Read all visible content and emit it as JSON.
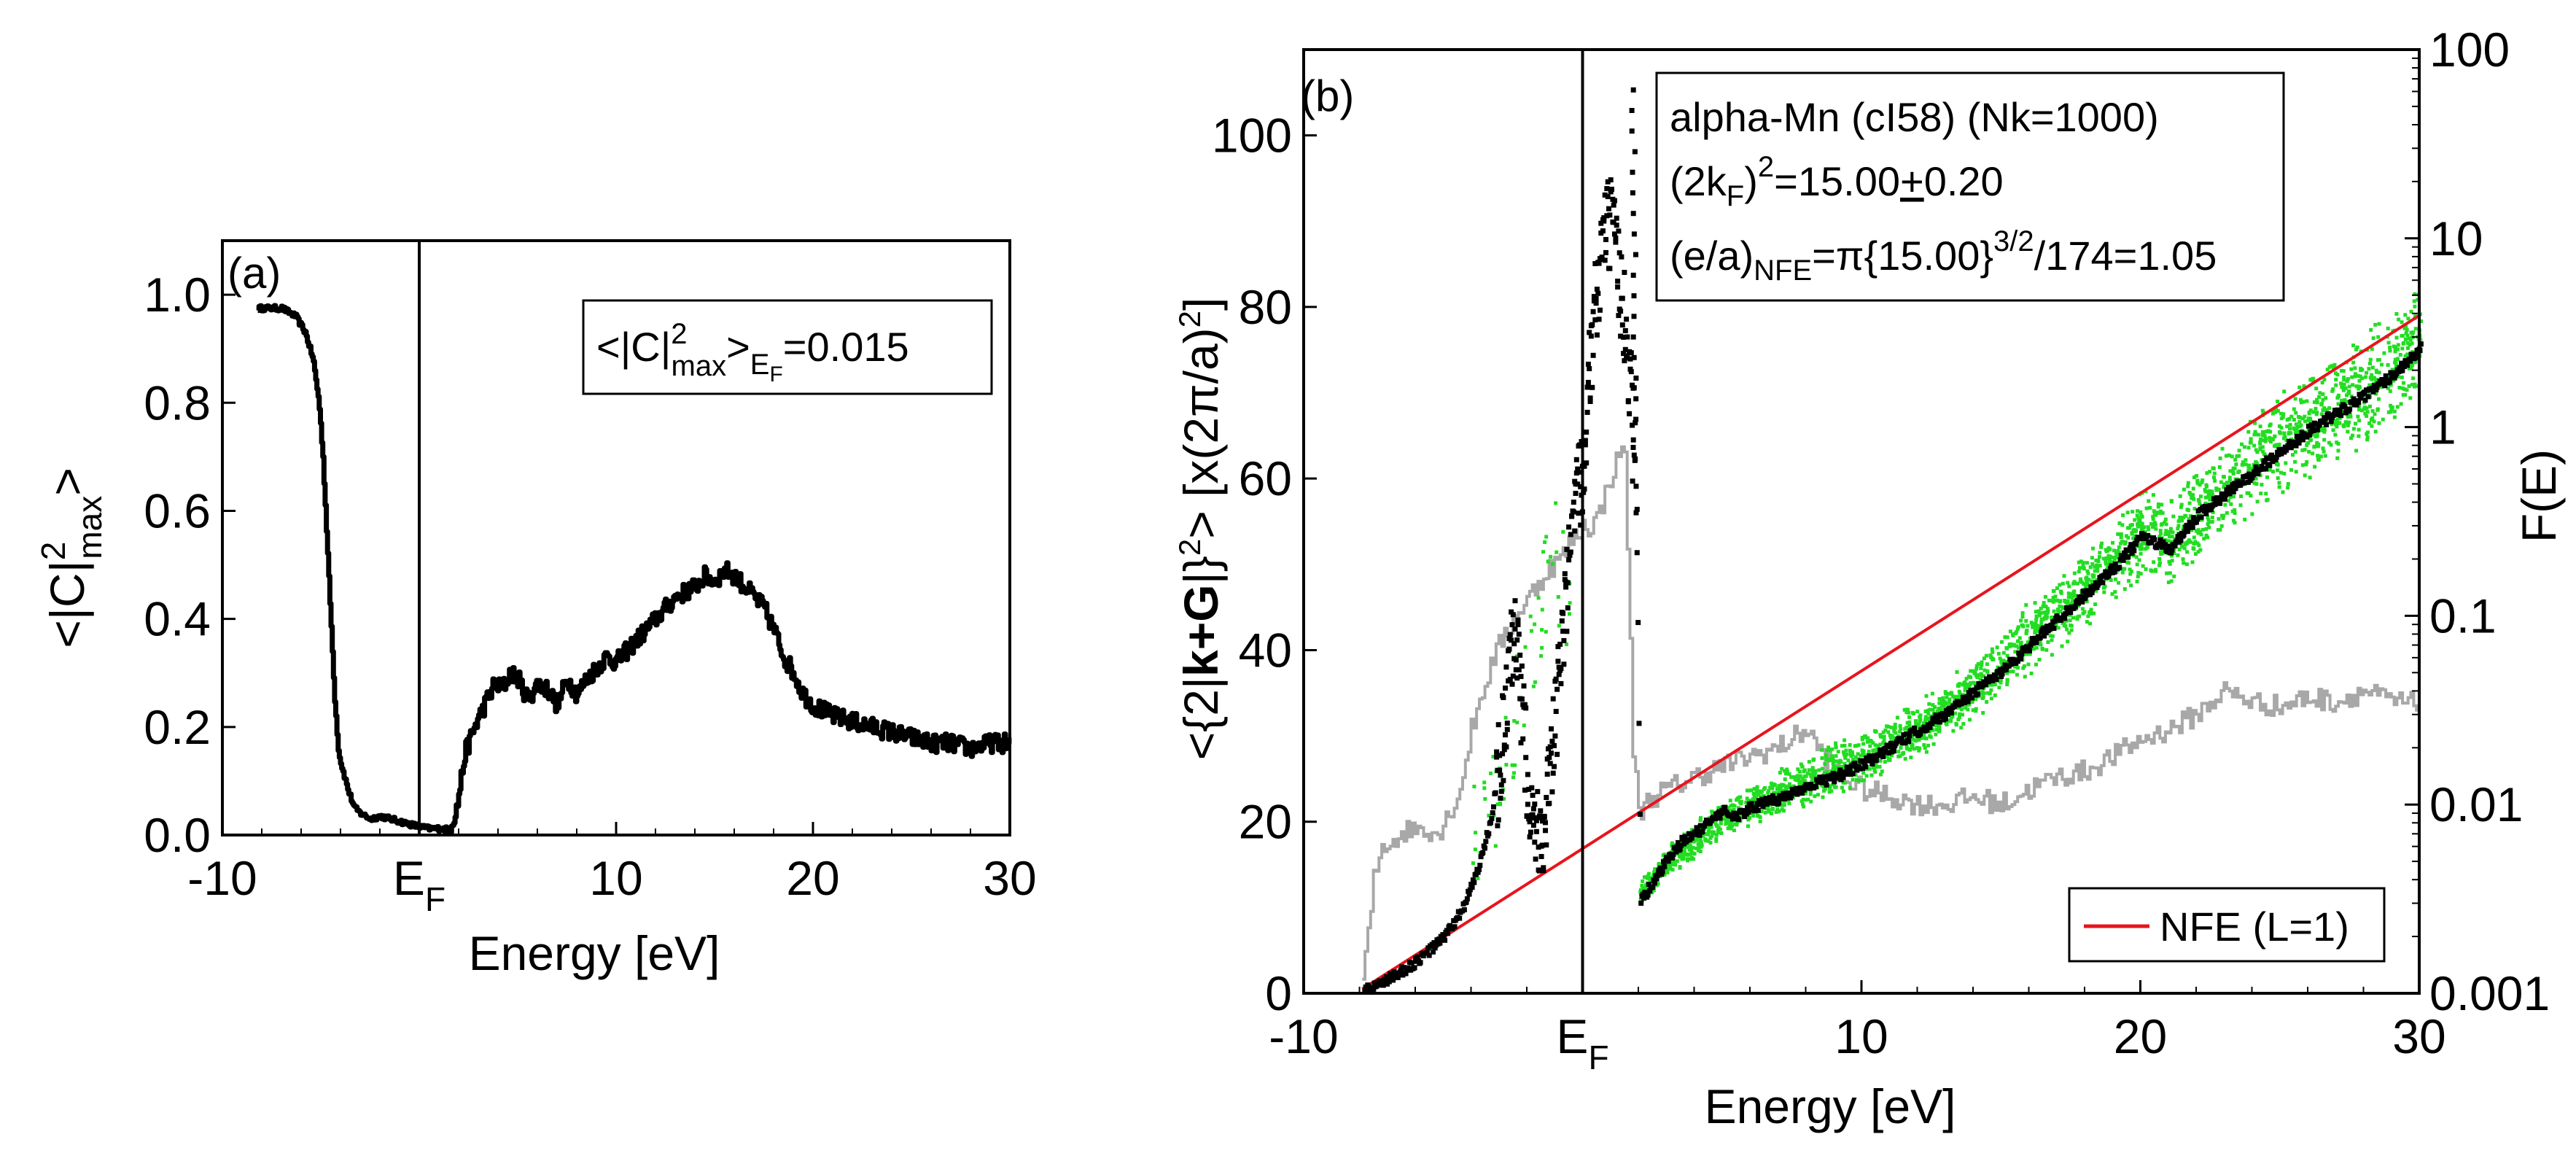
{
  "chart_data": [
    {
      "type": "line",
      "panel_label": "(a)",
      "xlabel": "Energy [eV]",
      "ylabel_html": "<|C|²max>",
      "ylabel": {
        "open": "<|C|",
        "sup": "2",
        "sub": "max",
        "close": ">"
      },
      "xlim": [
        -10,
        30
      ],
      "ylim": [
        0,
        1.1
      ],
      "x_ticks": [
        {
          "v": -10,
          "label": "-10"
        },
        {
          "v": 0,
          "label": "E",
          "sub": "F"
        },
        {
          "v": 10,
          "label": "10"
        },
        {
          "v": 20,
          "label": "20"
        },
        {
          "v": 30,
          "label": "30"
        }
      ],
      "y_ticks": [
        {
          "v": 0.0,
          "label": "0.0"
        },
        {
          "v": 0.2,
          "label": "0.2"
        },
        {
          "v": 0.4,
          "label": "0.4"
        },
        {
          "v": 0.6,
          "label": "0.6"
        },
        {
          "v": 0.8,
          "label": "0.8"
        },
        {
          "v": 1.0,
          "label": "1.0"
        }
      ],
      "fermi_line_x": 0,
      "annotation": {
        "open": "<|C|",
        "sup": "2",
        "sub": "max",
        "close": ">",
        "sub2": "E",
        "sub3": "F",
        "value": "=0.015"
      },
      "series": [
        {
          "name": "<|C|^2_max>",
          "color": "#000000",
          "x": [
            -8.2,
            -7.0,
            -6.3,
            -5.8,
            -5.4,
            -5.1,
            -4.9,
            -4.7,
            -4.5,
            -4.3,
            -4.1,
            -3.9,
            -3.6,
            -3.3,
            -3.0,
            -2.5,
            -2.0,
            -1.5,
            -1.0,
            -0.5,
            0.0,
            0.5,
            1.0,
            1.5,
            1.9,
            2.3,
            2.8,
            3.3,
            3.8,
            4.2,
            4.6,
            5.0,
            5.5,
            6.0,
            6.5,
            7.0,
            7.5,
            8.0,
            8.5,
            9.0,
            9.5,
            10.0,
            10.5,
            11.0,
            11.5,
            12.0,
            12.5,
            13.0,
            13.5,
            14.0,
            14.5,
            15.0,
            15.5,
            16.0,
            16.5,
            17.0,
            17.5,
            18.0,
            18.5,
            19.0,
            19.5,
            20.0,
            21.0,
            22.0,
            23.0,
            24.0,
            25.0,
            26.0,
            27.0,
            28.0,
            29.0,
            30.0
          ],
          "y": [
            0.975,
            0.975,
            0.96,
            0.93,
            0.88,
            0.8,
            0.7,
            0.55,
            0.4,
            0.25,
            0.15,
            0.12,
            0.08,
            0.05,
            0.04,
            0.03,
            0.035,
            0.03,
            0.025,
            0.02,
            0.015,
            0.012,
            0.012,
            0.01,
            0.05,
            0.15,
            0.2,
            0.24,
            0.28,
            0.27,
            0.3,
            0.29,
            0.25,
            0.28,
            0.27,
            0.24,
            0.29,
            0.26,
            0.29,
            0.31,
            0.33,
            0.32,
            0.34,
            0.36,
            0.38,
            0.4,
            0.42,
            0.44,
            0.45,
            0.46,
            0.48,
            0.47,
            0.49,
            0.48,
            0.46,
            0.44,
            0.42,
            0.38,
            0.33,
            0.3,
            0.26,
            0.24,
            0.22,
            0.21,
            0.2,
            0.19,
            0.18,
            0.17,
            0.17,
            0.16,
            0.17,
            0.17
          ]
        }
      ]
    },
    {
      "type": "scatter",
      "panel_label": "(b)",
      "xlabel": "Energy [eV]",
      "ylabel": {
        "p1": "<{2|",
        "bold": "k+G",
        "p2": "|}",
        "sup": "2",
        "p3": "> [x(2π/a)",
        "sup2": "2",
        "p4": "]"
      },
      "y2label": "F(E)",
      "xlim": [
        -10,
        30
      ],
      "ylim": [
        0,
        110
      ],
      "y2lim_log10": [
        -3,
        2
      ],
      "x_ticks": [
        {
          "v": -10,
          "label": "-10"
        },
        {
          "v": 0,
          "label": "E",
          "sub": "F"
        },
        {
          "v": 10,
          "label": "10"
        },
        {
          "v": 20,
          "label": "20"
        },
        {
          "v": 30,
          "label": "30"
        }
      ],
      "y_ticks": [
        {
          "v": 0,
          "label": "0"
        },
        {
          "v": 20,
          "label": "20"
        },
        {
          "v": 40,
          "label": "40"
        },
        {
          "v": 60,
          "label": "60"
        },
        {
          "v": 80,
          "label": "80"
        },
        {
          "v": 100,
          "label": "100"
        }
      ],
      "y2_ticks": [
        {
          "v": 0.001,
          "label": "0.001"
        },
        {
          "v": 0.01,
          "label": "0.01"
        },
        {
          "v": 0.1,
          "label": "0.1"
        },
        {
          "v": 1,
          "label": "1"
        },
        {
          "v": 10,
          "label": "10"
        },
        {
          "v": 100,
          "label": "100"
        }
      ],
      "fermi_line_x": 0,
      "annotation": {
        "line1": "alpha-Mn (cI58) (Nk=1000)",
        "line2": {
          "a": "(2k",
          "sub": "F",
          "b": ")",
          "sup": "2",
          "c": "=15.00",
          "d": "+",
          "e": "0.20"
        },
        "line3": {
          "a": "(e/a)",
          "sub": "NFE",
          "b": "=π{15.00}",
          "sup": "3/2",
          "c": "/174=1.05"
        }
      },
      "legend": {
        "position": "bottom-right",
        "entries": [
          {
            "label": "NFE (L=1)",
            "color": "#e8141c"
          }
        ]
      },
      "series": [
        {
          "name": "NFE (L=1)",
          "kind": "line",
          "color": "#e8141c",
          "x": [
            -7.9,
            30.0
          ],
          "y": [
            0.5,
            79.0
          ]
        },
        {
          "name": "F(E)",
          "kind": "step-log",
          "color": "#a8a8a8",
          "x": [
            -7.9,
            -7.7,
            -7.5,
            -7.2,
            -6.8,
            -6.4,
            -6.0,
            -5.6,
            -5.2,
            -4.8,
            -4.4,
            -4.0,
            -3.6,
            -3.2,
            -2.8,
            -2.4,
            -2.0,
            -1.6,
            -1.2,
            -0.8,
            -0.4,
            0.0,
            0.3,
            0.6,
            0.9,
            1.2,
            1.5,
            1.8,
            2.0,
            2.2,
            2.5,
            3.0,
            3.5,
            4.0,
            5.0,
            6.0,
            7.0,
            8.0,
            9.0,
            10.0,
            11.0,
            12.0,
            13.0,
            14.0,
            15.0,
            16.0,
            17.0,
            18.0,
            19.0,
            20.0,
            21.0,
            22.0,
            23.0,
            24.0,
            25.0,
            26.0,
            27.0,
            28.0,
            29.0,
            30.0
          ],
          "y": [
            0.0012,
            0.002,
            0.004,
            0.006,
            0.0065,
            0.0072,
            0.0075,
            0.0075,
            0.007,
            0.009,
            0.012,
            0.025,
            0.04,
            0.06,
            0.08,
            0.1,
            0.12,
            0.15,
            0.18,
            0.2,
            0.25,
            0.3,
            0.3,
            0.35,
            0.5,
            0.65,
            0.8,
            0.02,
            0.009,
            0.01,
            0.011,
            0.012,
            0.013,
            0.014,
            0.016,
            0.018,
            0.02,
            0.025,
            0.015,
            0.012,
            0.011,
            0.01,
            0.01,
            0.011,
            0.01,
            0.012,
            0.014,
            0.015,
            0.018,
            0.022,
            0.025,
            0.03,
            0.04,
            0.035,
            0.033,
            0.037,
            0.035,
            0.04,
            0.035,
            0.034
          ]
        },
        {
          "name": "<{2|k+G|}^2>",
          "kind": "dots",
          "color": "#000000",
          "x": [
            -7.9,
            -7.0,
            -6.0,
            -5.0,
            -4.4,
            -3.8,
            -3.4,
            -3.0,
            -2.7,
            -2.5,
            -2.3,
            -2.1,
            -1.9,
            -1.7,
            -1.5,
            -1.3,
            -1.1,
            -0.9,
            -0.7,
            -0.5,
            -0.3,
            -0.1,
            0.1,
            0.3,
            0.5,
            0.7,
            0.9,
            1.1,
            1.3,
            1.5,
            1.7,
            1.85,
            2.0,
            2.2,
            2.6,
            3.0,
            3.5,
            4.0,
            4.5,
            5.0,
            5.5,
            6.0,
            7.0,
            8.0,
            9.0,
            10.0,
            11.0,
            12.0,
            13.0,
            14.0,
            15.0,
            16.0,
            17.0,
            18.0,
            19.0,
            20.0,
            21.0,
            22.0,
            23.0,
            24.0,
            25.0,
            26.0,
            27.0,
            28.0,
            29.0,
            30.0
          ],
          "y": [
            0.5,
            2.0,
            4.0,
            7.0,
            10.0,
            15.0,
            20.0,
            28.0,
            38.0,
            41.0,
            35.0,
            27.0,
            22.0,
            19.0,
            20.0,
            24.0,
            30.0,
            38.0,
            45.0,
            52.0,
            57.0,
            62.0,
            70.0,
            78.0,
            84.0,
            88.0,
            90.0,
            86.0,
            82.0,
            76.0,
            70.0,
            60.0,
            11.0,
            12.0,
            14.0,
            16.0,
            18.0,
            19.0,
            20.5,
            21.5,
            21.0,
            22.0,
            23.0,
            24.5,
            25.5,
            27.0,
            29.0,
            31.0,
            33.0,
            35.5,
            38.0,
            41.0,
            44.0,
            47.0,
            50.0,
            53.5,
            52.0,
            56.0,
            58.5,
            61.0,
            63.5,
            66.0,
            68.0,
            70.0,
            72.5,
            75.5
          ]
        },
        {
          "name": "scatter",
          "kind": "scatter",
          "color": "#22dd22",
          "x": [
            -3.5,
            -3.0,
            -1.6,
            -1.2,
            2.0,
            2.5,
            3.0,
            4.0,
            5.0,
            6.0,
            7.0,
            8.0,
            9.0,
            10.0,
            11.0,
            12.0,
            13.0,
            14.0,
            15.0,
            16.0,
            17.0,
            18.0,
            19.0,
            20.0,
            21.0,
            22.0,
            23.0,
            24.0,
            25.0,
            26.0,
            27.0,
            28.0,
            29.0,
            29.8
          ],
          "y": [
            20.0,
            26.0,
            44.0,
            53.0,
            12.0,
            13.5,
            15.5,
            18.0,
            20.5,
            22.0,
            23.5,
            25.0,
            26.5,
            27.5,
            29.5,
            31.0,
            33.5,
            35.5,
            38.5,
            41.5,
            44.5,
            47.5,
            50.5,
            54.0,
            52.5,
            56.5,
            59.0,
            61.5,
            64.0,
            66.5,
            68.5,
            70.5,
            73.0,
            76.0
          ],
          "spread": [
            1.5,
            2.0,
            2.0,
            2.5,
            1.0,
            1.0,
            1.2,
            1.5,
            1.5,
            1.5,
            1.8,
            1.8,
            2.0,
            2.0,
            2.0,
            2.2,
            2.2,
            2.5,
            2.5,
            3.0,
            3.0,
            3.0,
            3.2,
            3.5,
            3.5,
            3.5,
            3.8,
            3.8,
            4.0,
            4.0,
            4.2,
            4.2,
            4.5,
            4.5
          ]
        }
      ]
    }
  ]
}
